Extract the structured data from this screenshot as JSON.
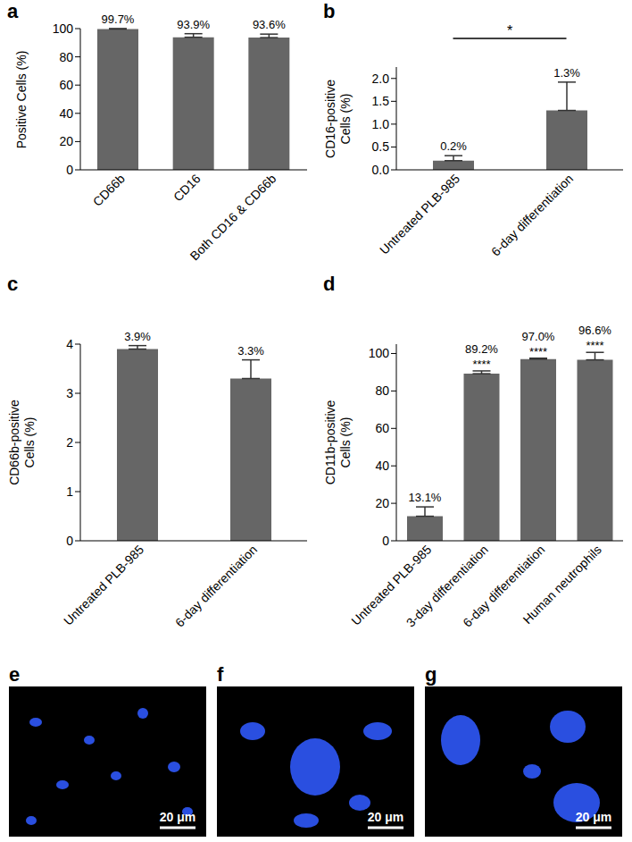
{
  "chart_data": [
    {
      "panel": "a",
      "type": "bar",
      "y_label": [
        "Positive Cells (%)"
      ],
      "categories": [
        "CD66b",
        "CD16",
        "Both CD16 & CD66b"
      ],
      "values": [
        99.7,
        93.9,
        93.6
      ],
      "value_labels": [
        "99.7%",
        "93.9%",
        "93.6%"
      ],
      "errors": [
        0.3,
        2.5,
        2.5
      ],
      "color": "#666666",
      "ylim": [
        0,
        100
      ],
      "yticks": [
        0,
        20,
        40,
        60,
        80,
        100
      ]
    },
    {
      "panel": "b",
      "type": "bar",
      "y_label": [
        "CD16-positive",
        "Cells (%)"
      ],
      "categories": [
        "Untreated PLB-985",
        "6-day differentiation"
      ],
      "values": [
        0.2,
        1.3
      ],
      "value_labels": [
        "0.2%",
        "1.3%"
      ],
      "errors": [
        0.11,
        0.62
      ],
      "color": "#666666",
      "ylim": [
        0,
        2.25
      ],
      "yticks": [
        {
          "value": 0,
          "label": "0.0"
        },
        0.5,
        {
          "value": 1,
          "label": "1.0"
        },
        1.5,
        {
          "value": 2,
          "label": "2.0"
        }
      ],
      "brackets": [
        {
          "between": [
            0,
            1
          ],
          "label": "*"
        }
      ]
    },
    {
      "panel": "c",
      "type": "bar",
      "y_label": [
        "CD66b-positive",
        "Cells (%)"
      ],
      "categories": [
        "Untreated PLB-985",
        "6-day differentiation"
      ],
      "values": [
        3.9,
        3.3
      ],
      "value_labels": [
        "3.9%",
        "3.3%"
      ],
      "errors": [
        0.07,
        0.38
      ],
      "color": "#666666",
      "ylim": [
        0,
        4
      ],
      "yticks": [
        0,
        1,
        2,
        3,
        4
      ]
    },
    {
      "panel": "d",
      "type": "bar",
      "y_label": [
        "CD11b-positive",
        "Cells (%)"
      ],
      "categories": [
        "Untreated PLB-985",
        "3-day differentiation",
        "6-day differentiation",
        "Human neutrophils"
      ],
      "values": [
        13.1,
        89.2,
        97.0,
        96.6
      ],
      "value_labels": [
        "13.1%",
        "89.2%",
        "97.0%",
        "96.6%"
      ],
      "errors": [
        5,
        1.5,
        0.5,
        4
      ],
      "significance": [
        null,
        "****",
        "****",
        "****"
      ],
      "color": "#666666",
      "ylim": [
        0,
        105
      ],
      "yticks": [
        0,
        20,
        40,
        60,
        80,
        100
      ]
    }
  ],
  "images": [
    {
      "panel": "e",
      "scale_bar": "20 μm"
    },
    {
      "panel": "f",
      "scale_bar": "20 μm"
    },
    {
      "panel": "g",
      "scale_bar": "20 μm"
    }
  ]
}
